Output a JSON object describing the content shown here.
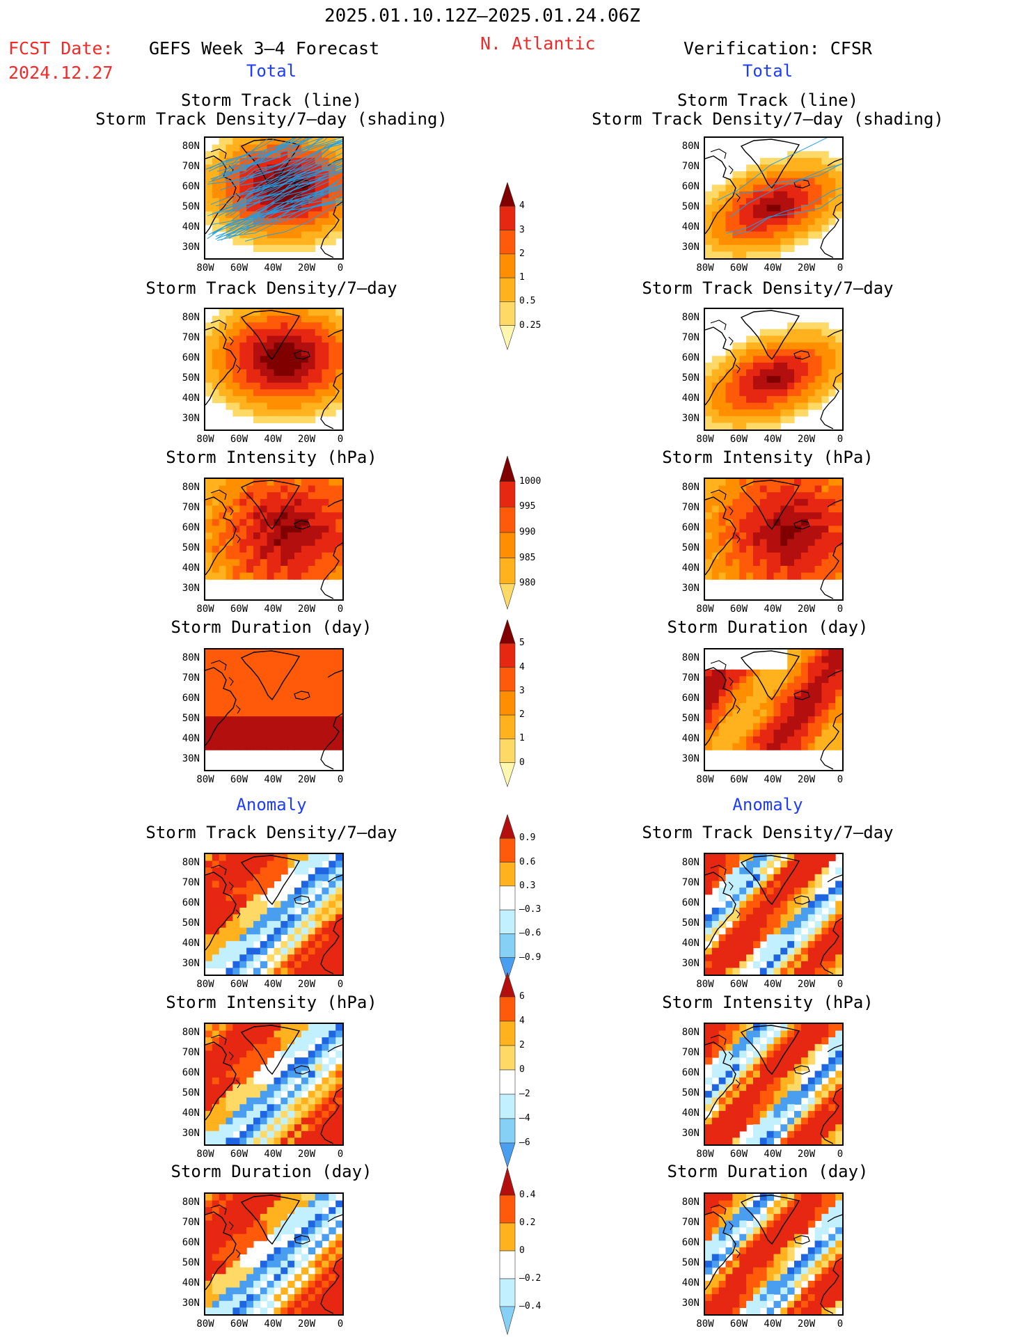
{
  "header": {
    "date_range": "2025.01.10.12Z–2025.01.24.06Z",
    "fcst_label": "FCST Date:",
    "fcst_date": "2024.12.27",
    "left_title": "GEFS Week 3–4 Forecast",
    "region": "N. Atlantic",
    "right_title": "Verification: CFSR"
  },
  "sections": {
    "total": "Total",
    "anomaly": "Anomaly"
  },
  "panel_titles": {
    "track_line": "Storm Track (line)",
    "track_density_shading": "Storm Track Density/7–day (shading)",
    "track_density": "Storm Track Density/7–day",
    "intensity": "Storm Intensity (hPa)",
    "duration": "Storm Duration (day)"
  },
  "axes": {
    "lat_ticks": [
      "80N",
      "70N",
      "60N",
      "50N",
      "40N",
      "30N"
    ],
    "lon_ticks": [
      "80W",
      "60W",
      "40W",
      "20W",
      "0"
    ]
  },
  "colorbars": {
    "density_total": [
      "4",
      "3",
      "2",
      "1",
      "0.5",
      "0.25"
    ],
    "intensity_total": [
      "1000",
      "995",
      "990",
      "985",
      "980"
    ],
    "duration_total": [
      "5",
      "4",
      "3",
      "2",
      "1",
      "0"
    ],
    "density_anom": [
      "0.9",
      "0.6",
      "0.3",
      "–0.3",
      "–0.6",
      "–0.9"
    ],
    "intensity_anom": [
      "6",
      "4",
      "2",
      "0",
      "–2",
      "–4",
      "–6"
    ],
    "duration_anom": [
      "0.4",
      "0.2",
      "0",
      "–0.2",
      "–0.4"
    ]
  },
  "colors": {
    "title_red": "#f22a2a",
    "title_blue": "#1e3cff",
    "warm_scale": [
      "#fff7b0",
      "#ffd966",
      "#ffb21e",
      "#ff8f00",
      "#ff5a0a",
      "#e62712",
      "#b30f0f",
      "#800000"
    ],
    "cool_scale": [
      "#c2f0ff",
      "#86d0f5",
      "#4a9ef0",
      "#1f64e0",
      "#0a3cb8"
    ],
    "track_line": "#1f9ee6"
  }
}
